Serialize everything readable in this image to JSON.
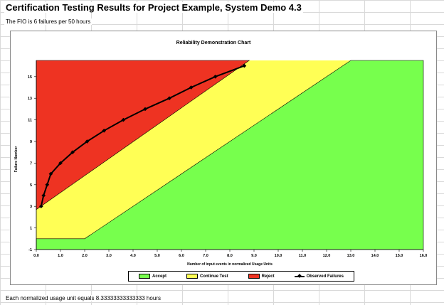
{
  "header": {
    "title": "Certification Testing Results for Project Example, System Demo 4.3",
    "subtitle": "The FIO is 6 failures per 50 hours"
  },
  "footer": {
    "note": "Each normalized usage unit equals 8.33333333333333 hours"
  },
  "colors": {
    "accept": "#77ff4d",
    "continue": "#ffff55",
    "reject": "#ee3322",
    "observed": "#000000"
  },
  "chart_data": {
    "type": "line",
    "title": "Reliability Demonstration Chart",
    "xlabel": "Number of input events in normalized Usage Units",
    "ylabel": "Failure Number",
    "xlim": [
      0,
      16
    ],
    "ylim": [
      -1,
      16.5
    ],
    "x_ticks": [
      "0.0",
      "1.0",
      "2.0",
      "3.0",
      "4.0",
      "5.0",
      "6.0",
      "7.0",
      "8.0",
      "9.0",
      "10.0",
      "11.0",
      "12.0",
      "13.0",
      "14.0",
      "15.0",
      "16.0"
    ],
    "y_ticks": [
      {
        "value": -1,
        "label": "-1"
      },
      {
        "value": 1,
        "label": "1"
      },
      {
        "value": 3,
        "label": "3"
      },
      {
        "value": 5,
        "label": "5"
      },
      {
        "value": 7,
        "label": "7"
      },
      {
        "value": 9,
        "label": "9"
      },
      {
        "value": 11,
        "label": "11"
      },
      {
        "value": 13,
        "label": "13"
      },
      {
        "value": 15,
        "label": "15"
      }
    ],
    "grid": false,
    "legend_position": "bottom",
    "regions": {
      "reject_boundary": [
        [
          0,
          2.7
        ],
        [
          8.8,
          16.5
        ]
      ],
      "accept_boundary": [
        [
          0,
          0
        ],
        [
          2.0,
          0
        ],
        [
          13.0,
          16.5
        ]
      ]
    },
    "series": [
      {
        "name": "Observed Failures",
        "points": [
          [
            0.2,
            3
          ],
          [
            0.3,
            4
          ],
          [
            0.45,
            5
          ],
          [
            0.6,
            6
          ],
          [
            1.0,
            7
          ],
          [
            1.5,
            8
          ],
          [
            2.1,
            9
          ],
          [
            2.8,
            10
          ],
          [
            3.6,
            11
          ],
          [
            4.5,
            12
          ],
          [
            5.5,
            13
          ],
          [
            6.4,
            14
          ],
          [
            7.4,
            15
          ],
          [
            8.6,
            16
          ]
        ]
      }
    ],
    "legend": [
      "Accept",
      "Continue Test",
      "Reject",
      "Observed Failures"
    ]
  }
}
